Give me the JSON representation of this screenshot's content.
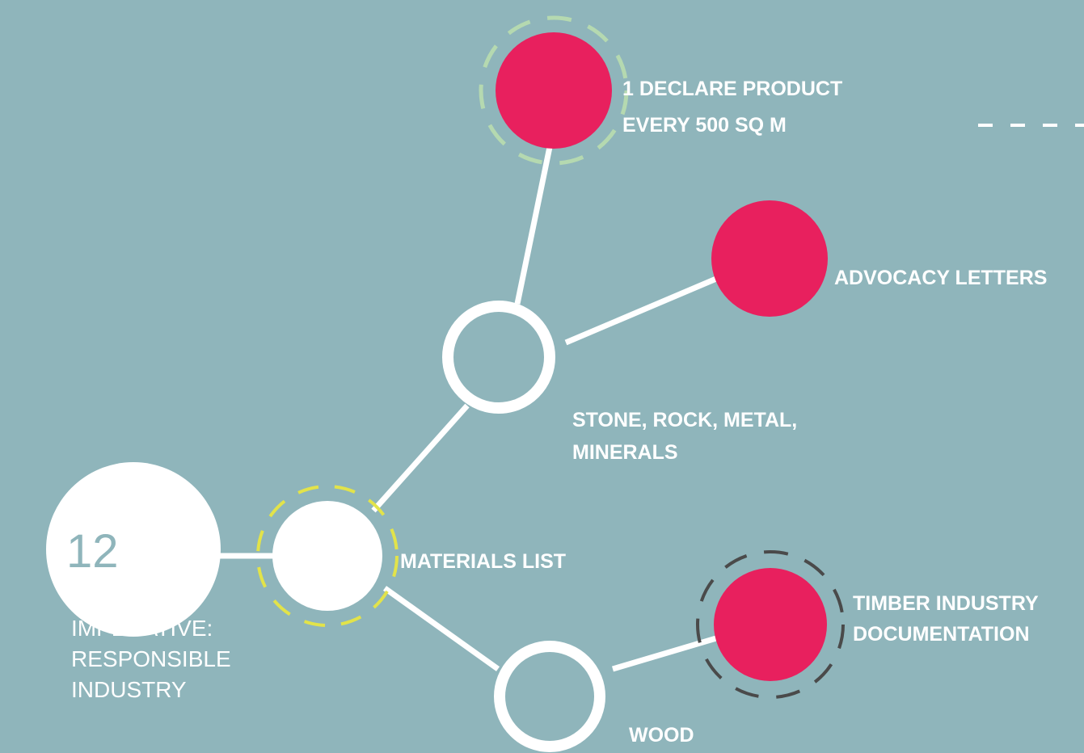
{
  "imperative": {
    "number": "12",
    "label": [
      "IMPERATIVE:",
      "RESPONSIBLE",
      "INDUSTRY"
    ]
  },
  "nodes": [
    {
      "label": [
        "MATERIALS LIST"
      ]
    },
    {
      "label": [
        "STONE, ROCK, METAL,",
        "MINERALS"
      ]
    },
    {
      "label": [
        "1 DECLARE PRODUCT",
        "EVERY 500 SQ M"
      ]
    },
    {
      "label": [
        "ADVOCACY LETTERS"
      ]
    },
    {
      "label": [
        "WOOD"
      ]
    },
    {
      "label": [
        "TIMBER INDUSTRY",
        "DOCUMENTATION"
      ]
    }
  ]
}
